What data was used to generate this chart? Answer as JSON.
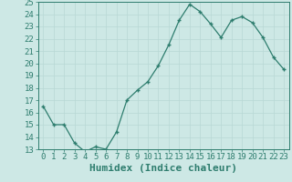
{
  "xlabel": "Humidex (Indice chaleur)",
  "x": [
    0,
    1,
    2,
    3,
    4,
    5,
    6,
    7,
    8,
    9,
    10,
    11,
    12,
    13,
    14,
    15,
    16,
    17,
    18,
    19,
    20,
    21,
    22,
    23
  ],
  "y": [
    16.5,
    15.0,
    15.0,
    13.5,
    12.8,
    13.2,
    13.0,
    14.4,
    17.0,
    17.8,
    18.5,
    19.8,
    21.5,
    23.5,
    24.8,
    24.2,
    23.2,
    22.1,
    23.5,
    23.8,
    23.3,
    22.1,
    20.5,
    19.5
  ],
  "ylim": [
    13,
    25
  ],
  "xlim": [
    -0.5,
    23.5
  ],
  "yticks": [
    13,
    14,
    15,
    16,
    17,
    18,
    19,
    20,
    21,
    22,
    23,
    24,
    25
  ],
  "xticks": [
    0,
    1,
    2,
    3,
    4,
    5,
    6,
    7,
    8,
    9,
    10,
    11,
    12,
    13,
    14,
    15,
    16,
    17,
    18,
    19,
    20,
    21,
    22,
    23
  ],
  "line_color": "#2e7d6e",
  "marker": "+",
  "bg_color": "#cde8e5",
  "grid_color": "#b8d8d5",
  "axis_color": "#2e7d6e",
  "label_color": "#2e7d6e",
  "tick_fontsize": 6.5,
  "xlabel_fontsize": 8
}
